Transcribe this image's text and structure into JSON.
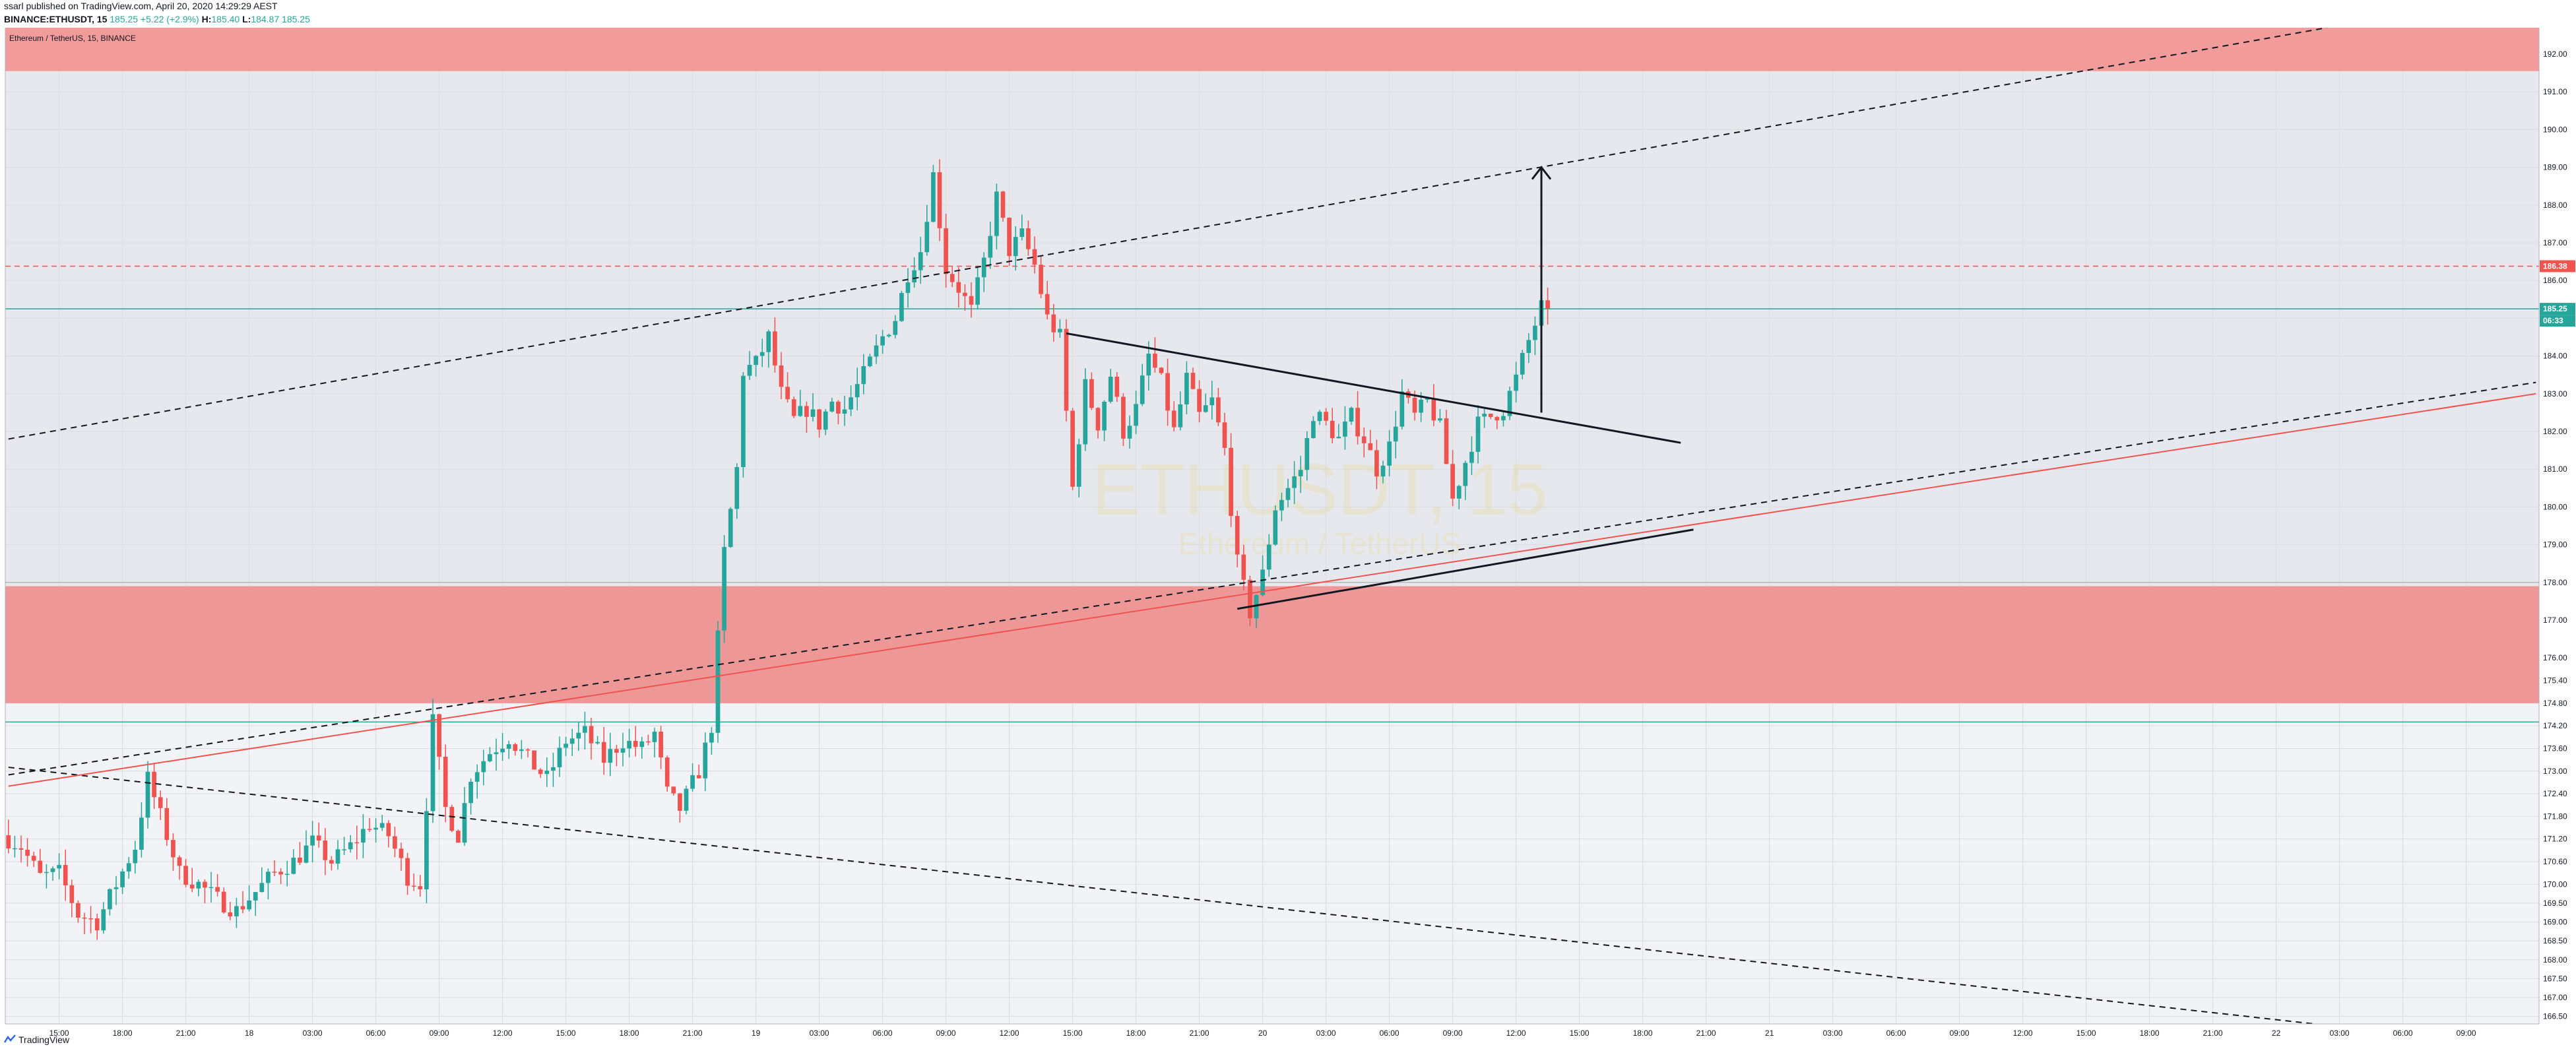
{
  "header": {
    "published": "ssarl published on TradingView.com, April 20, 2020 14:29:29 AEST",
    "symbol": "BINANCE:ETHUSDT, 15",
    "open": "185.25",
    "change": "+5.22 (+2.9%)",
    "high_label": "H:",
    "high": "185.40",
    "low_label": "L:",
    "low": "184.87",
    "close": "185.25"
  },
  "footer": {
    "brand": "TradingView",
    "logo_icon": "tradingview-logo-icon"
  },
  "chart_data": {
    "type": "candlestick",
    "symbol_label": "Ethereum / TetherUS, 15, BINANCE",
    "watermark": "ETHUSDT, 15",
    "watermark_sub": "Ethereum / TetherUS",
    "ylim": [
      166.3,
      192.7
    ],
    "xlim": [
      0,
      399
    ],
    "grid": true,
    "y_ticks": [
      "166.50",
      "167.00",
      "167.50",
      "168.00",
      "168.50",
      "169.00",
      "169.50",
      "170.00",
      "170.60",
      "171.20",
      "171.80",
      "172.40",
      "173.00",
      "173.60",
      "174.20",
      "174.80",
      "175.40",
      "176.00",
      "177.00",
      "178.00",
      "179.00",
      "180.00",
      "181.00",
      "182.00",
      "183.00",
      "184.00",
      "185.00",
      "186.00",
      "187.00",
      "188.00",
      "189.00",
      "190.00",
      "191.00",
      "192.00"
    ],
    "x_ticks": [
      {
        "index": 8,
        "label": "15:00"
      },
      {
        "index": 18,
        "label": "18:00"
      },
      {
        "index": 28,
        "label": "21:00"
      },
      {
        "index": 38,
        "label": "18"
      },
      {
        "index": 48,
        "label": "03:00"
      },
      {
        "index": 58,
        "label": "06:00"
      },
      {
        "index": 68,
        "label": "09:00"
      },
      {
        "index": 78,
        "label": "12:00"
      },
      {
        "index": 88,
        "label": "15:00"
      },
      {
        "index": 98,
        "label": "18:00"
      },
      {
        "index": 108,
        "label": "21:00"
      },
      {
        "index": 118,
        "label": "19"
      },
      {
        "index": 128,
        "label": "03:00"
      },
      {
        "index": 138,
        "label": "06:00"
      },
      {
        "index": 148,
        "label": "09:00"
      },
      {
        "index": 158,
        "label": "12:00"
      },
      {
        "index": 168,
        "label": "15:00"
      },
      {
        "index": 178,
        "label": "18:00"
      },
      {
        "index": 188,
        "label": "21:00"
      },
      {
        "index": 198,
        "label": "20"
      },
      {
        "index": 208,
        "label": "03:00"
      },
      {
        "index": 218,
        "label": "06:00"
      },
      {
        "index": 228,
        "label": "09:00"
      },
      {
        "index": 238,
        "label": "12:00"
      },
      {
        "index": 248,
        "label": "15:00"
      },
      {
        "index": 258,
        "label": "18:00"
      },
      {
        "index": 268,
        "label": "21:00"
      },
      {
        "index": 278,
        "label": "21"
      },
      {
        "index": 288,
        "label": "03:00"
      },
      {
        "index": 298,
        "label": "06:00"
      },
      {
        "index": 308,
        "label": "09:00"
      },
      {
        "index": 318,
        "label": "12:00"
      },
      {
        "index": 328,
        "label": "15:00"
      },
      {
        "index": 338,
        "label": "18:00"
      },
      {
        "index": 348,
        "label": "21:00"
      },
      {
        "index": 358,
        "label": "22"
      },
      {
        "index": 368,
        "label": "03:00"
      },
      {
        "index": 378,
        "label": "06:00"
      },
      {
        "index": 388,
        "label": "09:00"
      }
    ],
    "anchors": [
      [
        0,
        171.3
      ],
      [
        3,
        171.0
      ],
      [
        6,
        170.2
      ],
      [
        9,
        170.3
      ],
      [
        12,
        169.2
      ],
      [
        15,
        169.0
      ],
      [
        18,
        170.0
      ],
      [
        21,
        171.0
      ],
      [
        23,
        172.8
      ],
      [
        25,
        171.8
      ],
      [
        28,
        170.3
      ],
      [
        31,
        170.0
      ],
      [
        34,
        169.6
      ],
      [
        37,
        169.3
      ],
      [
        40,
        169.8
      ],
      [
        43,
        170.3
      ],
      [
        46,
        170.6
      ],
      [
        49,
        171.1
      ],
      [
        52,
        170.6
      ],
      [
        55,
        171.0
      ],
      [
        58,
        171.6
      ],
      [
        61,
        171.3
      ],
      [
        64,
        170.2
      ],
      [
        66,
        170.0
      ],
      [
        68,
        174.3
      ],
      [
        70,
        172.0
      ],
      [
        72,
        171.3
      ],
      [
        74,
        172.9
      ],
      [
        77,
        173.5
      ],
      [
        80,
        173.9
      ],
      [
        83,
        173.3
      ],
      [
        86,
        172.8
      ],
      [
        89,
        173.8
      ],
      [
        92,
        174.0
      ],
      [
        95,
        173.3
      ],
      [
        98,
        173.8
      ],
      [
        101,
        173.6
      ],
      [
        103,
        174.0
      ],
      [
        105,
        172.4
      ],
      [
        107,
        172.0
      ],
      [
        110,
        173.0
      ],
      [
        112,
        174.2
      ],
      [
        113,
        176.5
      ],
      [
        114,
        178.8
      ],
      [
        116,
        181.0
      ],
      [
        117,
        183.6
      ],
      [
        119,
        183.8
      ],
      [
        121,
        184.5
      ],
      [
        123,
        183.0
      ],
      [
        125,
        182.3
      ],
      [
        127,
        182.6
      ],
      [
        129,
        182.2
      ],
      [
        131,
        182.8
      ],
      [
        133,
        182.6
      ],
      [
        136,
        183.5
      ],
      [
        139,
        184.5
      ],
      [
        141,
        185.0
      ],
      [
        143,
        186.2
      ],
      [
        145,
        186.8
      ],
      [
        147,
        188.8
      ],
      [
        149,
        186.3
      ],
      [
        151,
        185.8
      ],
      [
        153,
        185.2
      ],
      [
        155,
        186.5
      ],
      [
        157,
        188.2
      ],
      [
        159,
        186.8
      ],
      [
        161,
        187.2
      ],
      [
        163,
        186.4
      ],
      [
        165,
        185.0
      ],
      [
        167,
        184.5
      ],
      [
        169,
        180.5
      ],
      [
        171,
        183.2
      ],
      [
        173,
        182.2
      ],
      [
        175,
        183.5
      ],
      [
        177,
        182.0
      ],
      [
        179,
        182.6
      ],
      [
        181,
        184.0
      ],
      [
        183,
        183.3
      ],
      [
        185,
        182.0
      ],
      [
        187,
        183.4
      ],
      [
        189,
        182.4
      ],
      [
        191,
        182.8
      ],
      [
        193,
        181.5
      ],
      [
        195,
        178.5
      ],
      [
        197,
        177.2
      ],
      [
        199,
        178.2
      ],
      [
        201,
        180.0
      ],
      [
        203,
        180.5
      ],
      [
        205,
        181.0
      ],
      [
        207,
        182.5
      ],
      [
        209,
        182.2
      ],
      [
        211,
        181.8
      ],
      [
        213,
        182.4
      ],
      [
        215,
        181.8
      ],
      [
        217,
        181.0
      ],
      [
        219,
        181.6
      ],
      [
        221,
        183.0
      ],
      [
        223,
        182.4
      ],
      [
        225,
        182.8
      ],
      [
        227,
        182.1
      ],
      [
        229,
        180.2
      ],
      [
        231,
        181.2
      ],
      [
        233,
        182.2
      ],
      [
        235,
        182.4
      ],
      [
        237,
        182.6
      ],
      [
        239,
        183.4
      ],
      [
        241,
        184.4
      ],
      [
        243,
        185.3
      ]
    ],
    "zones": [
      {
        "from": 191.55,
        "to": 192.7,
        "color": "#f28b8b"
      },
      {
        "from": 174.8,
        "to": 177.9,
        "color": "#f28b8b"
      }
    ],
    "background_bands": [
      {
        "from": 177.9,
        "to": 191.55,
        "color": "#e6e8ed"
      },
      {
        "from": 174.8,
        "to": 177.9,
        "color": "#d7d9df"
      }
    ],
    "level_lines": [
      {
        "price": 186.38,
        "style": "dashed",
        "color": "#ef5350",
        "label": "186.38"
      },
      {
        "price": 185.25,
        "style": "solid",
        "color": "#26a69a",
        "label": "185.25",
        "countdown": "06:33"
      },
      {
        "price": 174.3,
        "style": "solid",
        "color": "#26a69a"
      },
      {
        "price": 178.0,
        "style": "solid",
        "color": "#b7b7b7"
      }
    ],
    "trendlines": [
      {
        "name": "upper-channel-dashed",
        "from": [
          0,
          181.8
        ],
        "to": [
          366,
          192.7
        ],
        "style": "dashed",
        "color": "#131722"
      },
      {
        "name": "lower-channel-dashed",
        "from": [
          0,
          172.9
        ],
        "to": [
          399,
          183.3
        ],
        "style": "dashed",
        "color": "#131722"
      },
      {
        "name": "descending-dashed",
        "from": [
          0,
          173.1
        ],
        "to": [
          364,
          166.3
        ],
        "style": "dashed",
        "color": "#131722"
      },
      {
        "name": "red-support-line",
        "from": [
          0,
          172.6
        ],
        "to": [
          399,
          183.0
        ],
        "style": "solid",
        "color": "#ef5350"
      },
      {
        "name": "triangle-upper",
        "from": [
          167,
          184.6
        ],
        "to": [
          264,
          181.7
        ],
        "style": "solid",
        "color": "#131722",
        "width": 3
      },
      {
        "name": "triangle-lower",
        "from": [
          194,
          177.3
        ],
        "to": [
          266,
          179.4
        ],
        "style": "solid",
        "color": "#131722",
        "width": 3
      }
    ],
    "arrow": {
      "from": [
        242,
        182.5
      ],
      "to": [
        242,
        189.0
      ],
      "color": "#131722"
    }
  }
}
